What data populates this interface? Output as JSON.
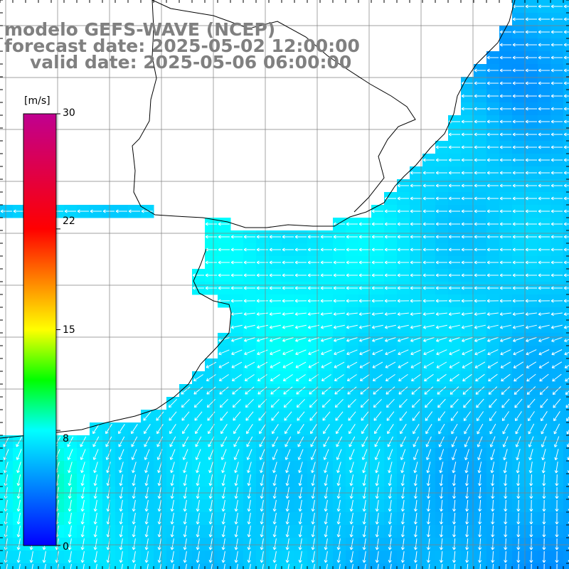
{
  "title": {
    "line1": "modelo GEFS-WAVE (NCEP)",
    "line2": "forecast date: 2025-05-02 12:00:00",
    "line3": "valid date: 2025-05-06 06:00:00"
  },
  "colorbar": {
    "unit": "[m/s]",
    "min": 0,
    "max": 30,
    "ticks": [
      {
        "value": 30,
        "label": "30"
      },
      {
        "value": 22,
        "label": "22"
      },
      {
        "value": 15,
        "label": "15"
      },
      {
        "value": 8,
        "label": "8"
      },
      {
        "value": 0,
        "label": "0"
      }
    ],
    "stops": [
      {
        "value": 0,
        "color": "#0000ff"
      },
      {
        "value": 4,
        "color": "#0080ff"
      },
      {
        "value": 8,
        "color": "#00ffff"
      },
      {
        "value": 11.5,
        "color": "#00ff00"
      },
      {
        "value": 15,
        "color": "#ffff00"
      },
      {
        "value": 18.5,
        "color": "#ff8000"
      },
      {
        "value": 22,
        "color": "#ff0000"
      },
      {
        "value": 30,
        "color": "#c00090"
      }
    ]
  },
  "map": {
    "land_color": "#ffffff",
    "coastline_color": "#000000",
    "grid_color": "#808080",
    "arrow_color": "#ffffff"
  }
}
